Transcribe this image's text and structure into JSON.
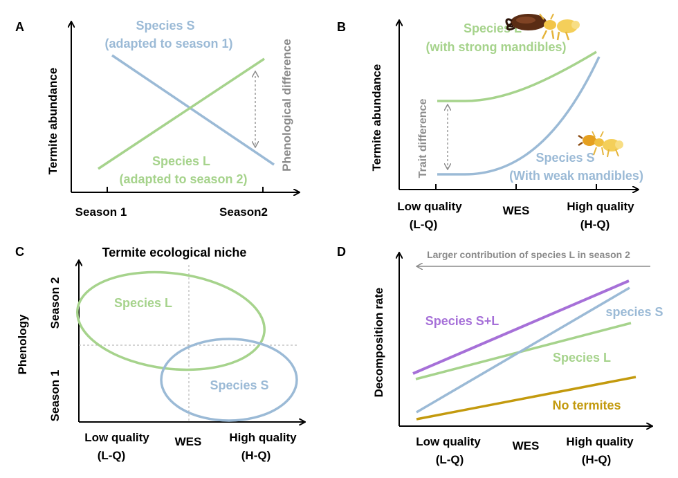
{
  "colors": {
    "blue": "#9bbad6",
    "green": "#a6d38c",
    "purple": "#a670d8",
    "gold": "#c39a0e",
    "gray": "#8a8a8a",
    "black": "#000000"
  },
  "panel_a": {
    "letter": "A",
    "ylabel": "Termite  abundance",
    "x_left": "Season 1",
    "x_right": "Season2",
    "species_s_line1": "Species S",
    "species_s_line2": "(adapted to season 1)",
    "species_l_line1": "Species L",
    "species_l_line2": "(adapted to season 2)",
    "annotation": "Phenological difference"
  },
  "panel_b": {
    "letter": "B",
    "ylabel": "Termite abundance",
    "x_left_1": "Low quality",
    "x_left_2": "(L-Q)",
    "x_mid": "WES",
    "x_right_1": "High quality",
    "x_right_2": "(H-Q)",
    "species_l_line1": "Species L",
    "species_l_line2": "(with strong mandibles)",
    "species_s_line1": "Species S",
    "species_s_line2": "(With weak mandibles)",
    "annotation": "Trait difference"
  },
  "panel_c": {
    "letter": "C",
    "title": "Termite ecological niche",
    "ylabel": "Phenology",
    "y_top": "Season 2",
    "y_bottom": "Season 1",
    "x_left_1": "Low quality",
    "x_left_2": "(L-Q)",
    "x_mid": "WES",
    "x_right_1": "High quality",
    "x_right_2": "(H-Q)",
    "species_l": "Species L",
    "species_s": "Species S"
  },
  "panel_d": {
    "letter": "D",
    "ylabel": "Decomposition rate",
    "arrow_label": "Larger contribution of species L in season 2",
    "x_left_1": "Low quality",
    "x_left_2": "(L-Q)",
    "x_mid": "WES",
    "x_right_1": "High quality",
    "x_right_2": "(H-Q)",
    "series_sl": "Species S+L",
    "series_s": "species S",
    "series_l": "Species L",
    "series_none": "No termites"
  },
  "icons": [
    "termite-large-mandibles-icon",
    "termite-small-icon"
  ]
}
